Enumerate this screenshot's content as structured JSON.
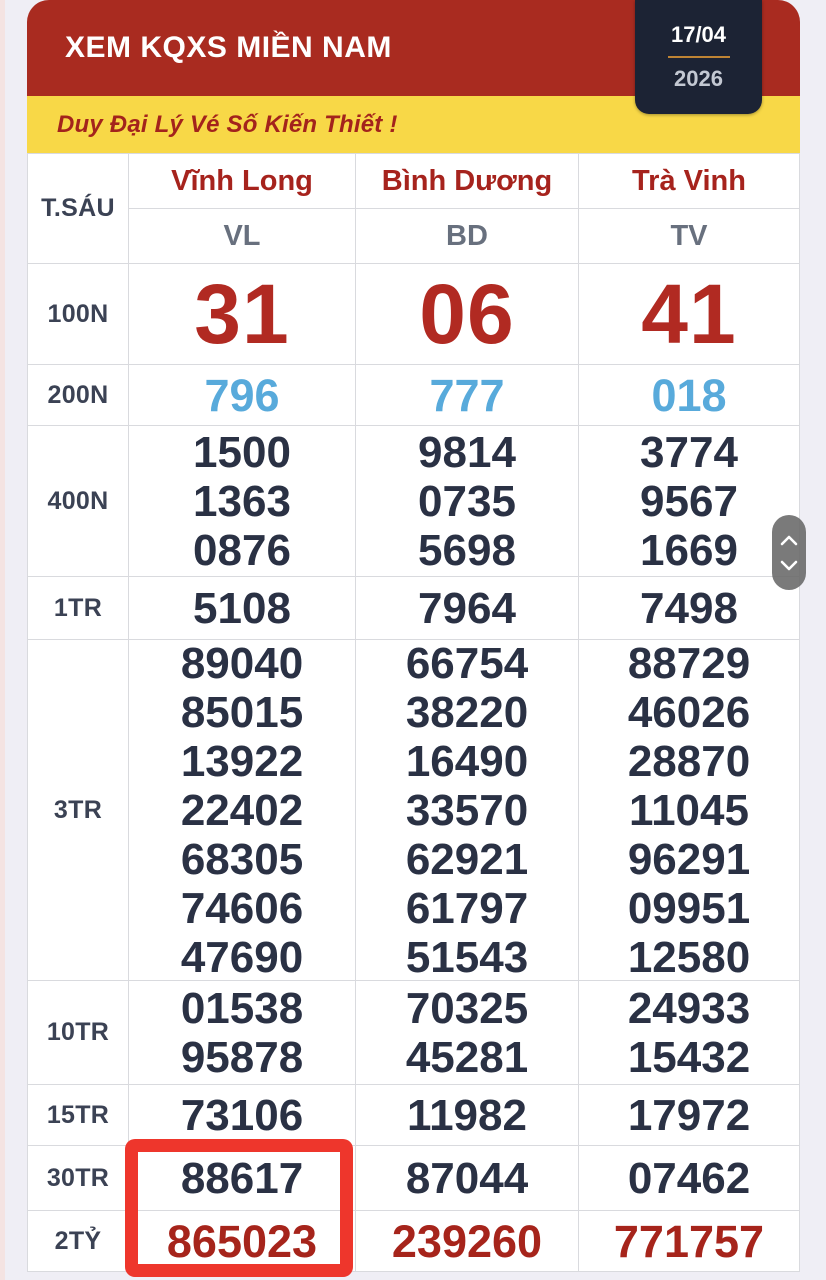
{
  "header": {
    "title": "XEM KQXS MIỀN NAM",
    "date_day": "17/04",
    "date_year": "2026"
  },
  "banner": {
    "text": "Duy Đại Lý Vé Số Kiến Thiết !"
  },
  "table": {
    "day_label": "T.SÁU",
    "provinces": [
      {
        "name": "Vĩnh Long",
        "code": "VL"
      },
      {
        "name": "Bình Dương",
        "code": "BD"
      },
      {
        "name": "Trà Vinh",
        "code": "TV"
      }
    ],
    "rows": [
      {
        "label": "100N",
        "style": "special",
        "values": [
          [
            "31"
          ],
          [
            "06"
          ],
          [
            "41"
          ]
        ]
      },
      {
        "label": "200N",
        "style": "blue",
        "values": [
          [
            "796"
          ],
          [
            "777"
          ],
          [
            "018"
          ]
        ]
      },
      {
        "label": "400N",
        "style": "normal",
        "values": [
          [
            "1500",
            "1363",
            "0876"
          ],
          [
            "9814",
            "0735",
            "5698"
          ],
          [
            "3774",
            "9567",
            "1669"
          ]
        ]
      },
      {
        "label": "1TR",
        "style": "normal",
        "values": [
          [
            "5108"
          ],
          [
            "7964"
          ],
          [
            "7498"
          ]
        ]
      },
      {
        "label": "3TR",
        "style": "normal",
        "values": [
          [
            "89040",
            "85015",
            "13922",
            "22402",
            "68305",
            "74606",
            "47690"
          ],
          [
            "66754",
            "38220",
            "16490",
            "33570",
            "62921",
            "61797",
            "51543"
          ],
          [
            "88729",
            "46026",
            "28870",
            "11045",
            "96291",
            "09951",
            "12580"
          ]
        ]
      },
      {
        "label": "10TR",
        "style": "normal",
        "values": [
          [
            "01538",
            "95878"
          ],
          [
            "70325",
            "45281"
          ],
          [
            "24933",
            "15432"
          ]
        ]
      },
      {
        "label": "15TR",
        "style": "normal",
        "values": [
          [
            "73106"
          ],
          [
            "11982"
          ],
          [
            "17972"
          ]
        ]
      },
      {
        "label": "30TR",
        "style": "normal",
        "values": [
          [
            "88617"
          ],
          [
            "87044"
          ],
          [
            "07462"
          ]
        ]
      },
      {
        "label": "2TỶ",
        "style": "red",
        "values": [
          [
            "865023"
          ],
          [
            "239260"
          ],
          [
            "771757"
          ]
        ]
      }
    ]
  },
  "annotations": {
    "highlight": "red box around Vĩnh Long 30TR and 2TỶ results"
  },
  "icons": {
    "up": "chevron-up-icon",
    "down": "chevron-down-icon"
  },
  "colors": {
    "header_red": "#a92b20",
    "banner_yellow": "#f8d847",
    "banner_text_red": "#a3231c",
    "date_box_navy": "#1c2334",
    "date_divider_gold": "#bf8434",
    "number_navy": "#2a3144",
    "special_red": "#b12a22",
    "blue_prize": "#58aadb",
    "jackpot_red": "#a6241b",
    "highlight_red": "#ee362c",
    "grid_line": "#d9dade",
    "page_bg": "#efeef5"
  }
}
